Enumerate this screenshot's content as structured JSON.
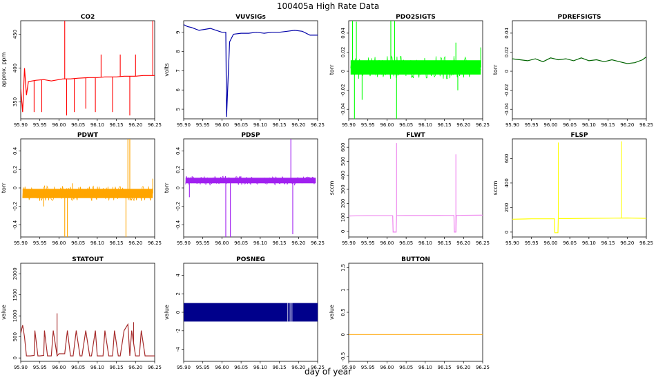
{
  "figure": {
    "title": "100405a   High Rate Data",
    "xlabel": "day of year"
  },
  "chart_data": [
    {
      "type": "line",
      "title": "CO2",
      "ylabel": "approx. ppm",
      "color": "#ff0000",
      "xlim": [
        95.9,
        96.25
      ],
      "ylim": [
        325,
        470
      ],
      "yticks": [
        350,
        400,
        450
      ],
      "xticks": [
        "95.90",
        "95.95",
        "96.00",
        "96.05",
        "96.10",
        "96.15",
        "96.20",
        "96.25"
      ],
      "series": {
        "x": [
          95.9,
          95.905,
          95.91,
          95.915,
          95.92,
          95.94,
          95.96,
          95.98,
          96.0,
          96.01,
          96.03,
          96.05,
          96.08,
          96.1,
          96.12,
          96.15,
          96.17,
          96.2,
          96.22,
          96.25
        ],
        "y": [
          370,
          335,
          400,
          360,
          380,
          382,
          383,
          381,
          383,
          384,
          384,
          385,
          386,
          386,
          387,
          387,
          388,
          388,
          389,
          389
        ]
      },
      "spikes": [
        {
          "x": 95.935,
          "to": 335
        },
        {
          "x": 95.955,
          "to": 335
        },
        {
          "x": 96.015,
          "to": 470
        },
        {
          "x": 96.02,
          "to": 330
        },
        {
          "x": 96.04,
          "to": 335
        },
        {
          "x": 96.07,
          "to": 340
        },
        {
          "x": 96.095,
          "to": 335
        },
        {
          "x": 96.11,
          "to": 420
        },
        {
          "x": 96.14,
          "to": 335
        },
        {
          "x": 96.16,
          "to": 420
        },
        {
          "x": 96.185,
          "to": 330
        },
        {
          "x": 96.2,
          "to": 420
        },
        {
          "x": 96.245,
          "to": 470
        }
      ]
    },
    {
      "type": "line",
      "title": "VUVSIGs",
      "ylabel": "volts",
      "color": "#0000a8",
      "xlim": [
        95.9,
        96.25
      ],
      "ylim": [
        4.5,
        9.6
      ],
      "yticks": [
        5,
        6,
        7,
        8,
        9
      ],
      "xticks": [
        "95.90",
        "95.95",
        "96.00",
        "96.05",
        "96.10",
        "96.15",
        "96.20",
        "96.25"
      ],
      "series": {
        "x": [
          95.9,
          95.91,
          95.92,
          95.94,
          95.955,
          95.97,
          95.985,
          96.0,
          96.01,
          96.012,
          96.02,
          96.03,
          96.05,
          96.07,
          96.09,
          96.11,
          96.13,
          96.15,
          96.17,
          96.19,
          96.21,
          96.23,
          96.25
        ],
        "y": [
          9.4,
          9.3,
          9.25,
          9.1,
          9.15,
          9.2,
          9.1,
          9.0,
          9.0,
          4.6,
          8.5,
          8.9,
          8.95,
          8.95,
          9.0,
          8.95,
          9.0,
          9.0,
          9.05,
          9.1,
          9.05,
          8.85,
          8.85
        ]
      }
    },
    {
      "type": "line",
      "title": "PDO2SIGTS",
      "ylabel": "torr",
      "color": "#00ff00",
      "xlim": [
        95.9,
        96.25
      ],
      "ylim": [
        -0.05,
        0.053
      ],
      "yticks": [
        -0.04,
        -0.02,
        0,
        0.02,
        0.04
      ],
      "xticks": [
        "95.90",
        "95.95",
        "96.00",
        "96.05",
        "96.10",
        "96.15",
        "96.20",
        "96.25"
      ],
      "band": {
        "x0": 95.905,
        "x1": 96.245,
        "y": 0.004,
        "h": 0.015
      },
      "spikes": [
        {
          "x": 95.91,
          "to": 0.055
        },
        {
          "x": 95.915,
          "to": -0.05
        },
        {
          "x": 95.92,
          "to": 0.052
        },
        {
          "x": 95.935,
          "to": -0.03
        },
        {
          "x": 96.01,
          "to": 0.055
        },
        {
          "x": 96.02,
          "to": 0.055
        },
        {
          "x": 96.025,
          "to": -0.05
        },
        {
          "x": 96.18,
          "to": 0.03
        },
        {
          "x": 96.185,
          "to": -0.02
        },
        {
          "x": 96.245,
          "to": 0.025
        }
      ]
    },
    {
      "type": "line",
      "title": "PDREFSIGTS",
      "ylabel": "torr",
      "color": "#006400",
      "xlim": [
        95.9,
        96.25
      ],
      "ylim": [
        -0.05,
        0.053
      ],
      "yticks": [
        -0.04,
        -0.02,
        0,
        0.02,
        0.04
      ],
      "xticks": [
        "95.90",
        "95.95",
        "96.00",
        "96.05",
        "96.10",
        "96.15",
        "96.20",
        "96.25"
      ],
      "series": {
        "x": [
          95.9,
          95.92,
          95.94,
          95.96,
          95.98,
          96.0,
          96.02,
          96.04,
          96.06,
          96.08,
          96.1,
          96.12,
          96.14,
          96.16,
          96.18,
          96.2,
          96.22,
          96.24,
          96.25
        ],
        "y": [
          0.013,
          0.012,
          0.011,
          0.013,
          0.01,
          0.014,
          0.012,
          0.013,
          0.011,
          0.014,
          0.011,
          0.012,
          0.01,
          0.012,
          0.01,
          0.008,
          0.009,
          0.012,
          0.015
        ]
      }
    },
    {
      "type": "line",
      "title": "PDWT",
      "ylabel": "torr",
      "color": "#ffa500",
      "xlim": [
        95.9,
        96.25
      ],
      "ylim": [
        -0.53,
        0.53
      ],
      "yticks": [
        -0.4,
        -0.2,
        0,
        0.2,
        0.4
      ],
      "xticks": [
        "95.90",
        "95.95",
        "96.00",
        "96.05",
        "96.10",
        "96.15",
        "96.20",
        "96.25"
      ],
      "band": {
        "x0": 95.905,
        "x1": 96.245,
        "y": -0.06,
        "h": 0.1
      },
      "spikes": [
        {
          "x": 95.96,
          "to": -0.2
        },
        {
          "x": 96.015,
          "to": -0.53
        },
        {
          "x": 96.022,
          "to": -0.53
        },
        {
          "x": 96.035,
          "to": 0.05
        },
        {
          "x": 96.175,
          "to": -0.53
        },
        {
          "x": 96.18,
          "to": 0.53
        },
        {
          "x": 96.185,
          "to": 0.53
        },
        {
          "x": 96.245,
          "to": 0.1
        }
      ]
    },
    {
      "type": "line",
      "title": "PDSP",
      "ylabel": "torr",
      "color": "#a020f0",
      "xlim": [
        95.9,
        96.25
      ],
      "ylim": [
        -0.53,
        0.53
      ],
      "yticks": [
        -0.4,
        -0.2,
        0,
        0.2,
        0.4
      ],
      "xticks": [
        "95.90",
        "95.95",
        "96.00",
        "96.05",
        "96.10",
        "96.15",
        "96.20",
        "96.25"
      ],
      "band": {
        "x0": 95.905,
        "x1": 96.245,
        "y": 0.08,
        "h": 0.06
      },
      "spikes": [
        {
          "x": 95.915,
          "to": -0.1
        },
        {
          "x": 96.01,
          "to": -0.53
        },
        {
          "x": 96.022,
          "to": -0.53
        },
        {
          "x": 96.18,
          "to": 0.53
        },
        {
          "x": 96.185,
          "to": -0.5
        }
      ]
    },
    {
      "type": "line",
      "title": "FLWT",
      "ylabel": "sccm",
      "color": "#ee82ee",
      "xlim": [
        95.9,
        96.25
      ],
      "ylim": [
        -40,
        660
      ],
      "yticks": [
        0,
        100,
        200,
        300,
        400,
        500,
        600
      ],
      "xticks": [
        "95.90",
        "95.95",
        "96.00",
        "96.05",
        "96.10",
        "96.15",
        "96.20",
        "96.25"
      ],
      "series": {
        "x": [
          95.9,
          95.95,
          96.0,
          96.015,
          96.016,
          96.024,
          96.025,
          96.05,
          96.1,
          96.15,
          96.175,
          96.176,
          96.18,
          96.181,
          96.2,
          96.25
        ],
        "y": [
          110,
          112,
          112,
          112,
          -5,
          -5,
          112,
          113,
          113,
          114,
          114,
          -5,
          -5,
          114,
          115,
          116
        ]
      },
      "spikes": [
        {
          "x": 96.025,
          "to": 630
        },
        {
          "x": 96.18,
          "to": 550
        }
      ]
    },
    {
      "type": "line",
      "title": "FLSP",
      "ylabel": "sccm",
      "color": "#ffff00",
      "xlim": [
        95.9,
        96.25
      ],
      "ylim": [
        -40,
        760
      ],
      "yticks": [
        0,
        200,
        400,
        600
      ],
      "xticks": [
        "95.90",
        "95.95",
        "96.00",
        "96.05",
        "96.10",
        "96.15",
        "96.20",
        "96.25"
      ],
      "series": {
        "x": [
          95.9,
          95.95,
          96.0,
          96.01,
          96.011,
          96.019,
          96.02,
          96.05,
          96.1,
          96.15,
          96.2,
          96.25
        ],
        "y": [
          105,
          108,
          108,
          108,
          -5,
          -5,
          110,
          110,
          112,
          113,
          115,
          112
        ]
      },
      "spikes": [
        {
          "x": 96.02,
          "to": 730
        },
        {
          "x": 96.185,
          "to": 740
        }
      ]
    },
    {
      "type": "line",
      "title": "STATOUT",
      "ylabel": "value",
      "color": "#a52a2a",
      "xlim": [
        95.9,
        96.25
      ],
      "ylim": [
        -80,
        2250
      ],
      "yticks": [
        0,
        500,
        1000,
        1500,
        2000
      ],
      "xticks": [
        "95.90",
        "95.95",
        "96.00",
        "96.05",
        "96.10",
        "96.15",
        "96.20",
        "96.25"
      ],
      "series": {
        "x": [
          95.9,
          95.905,
          95.91,
          95.915,
          95.925,
          95.935,
          95.937,
          95.945,
          95.95,
          95.96,
          95.962,
          95.97,
          95.98,
          95.985,
          95.995,
          96.0,
          96.015,
          96.022,
          96.03,
          96.037,
          96.045,
          96.055,
          96.06,
          96.07,
          96.08,
          96.085,
          96.095,
          96.1,
          96.115,
          96.12,
          96.13,
          96.14,
          96.145,
          96.155,
          96.16,
          96.17,
          96.18,
          96.185,
          96.19,
          96.2,
          96.21,
          96.215,
          96.225,
          96.23,
          96.235,
          96.25
        ],
        "y": [
          580,
          780,
          500,
          50,
          50,
          60,
          650,
          50,
          50,
          60,
          650,
          50,
          50,
          650,
          50,
          100,
          100,
          650,
          50,
          50,
          650,
          50,
          50,
          650,
          50,
          50,
          650,
          50,
          50,
          650,
          50,
          50,
          650,
          50,
          50,
          650,
          800,
          50,
          650,
          50,
          50,
          650,
          50,
          50,
          50,
          50
        ]
      },
      "spikes": [
        {
          "x": 95.995,
          "to": 1060
        },
        {
          "x": 96.195,
          "to": 850
        }
      ]
    },
    {
      "type": "line",
      "title": "POSNEG",
      "ylabel": "value",
      "color": "#00008b",
      "xlim": [
        95.9,
        96.25
      ],
      "ylim": [
        -5.3,
        5.3
      ],
      "yticks": [
        -4,
        -2,
        0,
        2,
        4
      ],
      "xticks": [
        "95.90",
        "95.95",
        "96.00",
        "96.05",
        "96.10",
        "96.15",
        "96.20",
        "96.25"
      ],
      "block": {
        "x0": 95.9,
        "x1": 96.25,
        "y0": -1,
        "y1": 1
      },
      "gaps": [
        96.172,
        96.178,
        96.183
      ]
    },
    {
      "type": "line",
      "title": "BUTTON",
      "ylabel": "value",
      "color": "#ffa500",
      "xlim": [
        95.9,
        96.25
      ],
      "ylim": [
        -0.6,
        1.6
      ],
      "yticks": [
        -0.5,
        0,
        0.5,
        1,
        1.5
      ],
      "xticks": [
        "95.90",
        "95.95",
        "96.00",
        "96.05",
        "96.10",
        "96.15",
        "96.20",
        "96.25"
      ],
      "series": {
        "x": [
          95.9,
          96.25
        ],
        "y": [
          0,
          0
        ]
      }
    }
  ]
}
